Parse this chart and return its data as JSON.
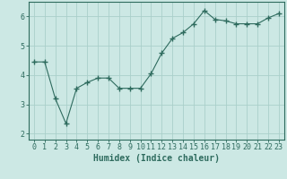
{
  "x": [
    0,
    1,
    2,
    3,
    4,
    5,
    6,
    7,
    8,
    9,
    10,
    11,
    12,
    13,
    14,
    15,
    16,
    17,
    18,
    19,
    20,
    21,
    22,
    23
  ],
  "y": [
    4.45,
    4.45,
    3.2,
    2.35,
    3.55,
    3.75,
    3.9,
    3.9,
    3.55,
    3.55,
    3.55,
    4.05,
    4.75,
    5.25,
    5.45,
    5.75,
    6.2,
    5.9,
    5.85,
    5.75,
    5.75,
    5.75,
    5.95,
    6.1
  ],
  "line_color": "#2e6b5e",
  "marker": "+",
  "marker_size": 4,
  "background_color": "#cce8e4",
  "grid_color": "#aacfca",
  "xlabel": "Humidex (Indice chaleur)",
  "xlabel_fontsize": 7,
  "tick_fontsize": 6,
  "ylim": [
    1.8,
    6.5
  ],
  "xlim": [
    -0.5,
    23.5
  ],
  "yticks": [
    2,
    3,
    4,
    5,
    6
  ],
  "xticks": [
    0,
    1,
    2,
    3,
    4,
    5,
    6,
    7,
    8,
    9,
    10,
    11,
    12,
    13,
    14,
    15,
    16,
    17,
    18,
    19,
    20,
    21,
    22,
    23
  ]
}
